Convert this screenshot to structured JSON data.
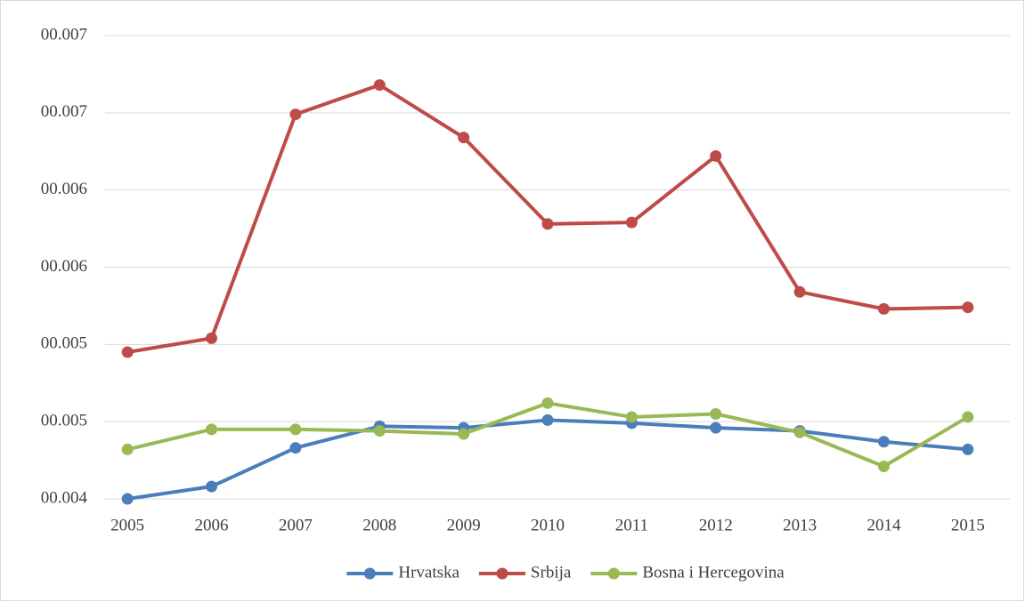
{
  "chart_data": {
    "type": "line",
    "categories": [
      "2005",
      "2006",
      "2007",
      "2008",
      "2009",
      "2010",
      "2011",
      "2012",
      "2013",
      "2014",
      "2015"
    ],
    "series": [
      {
        "name": "Hrvatska",
        "color": "#4a7ebb",
        "values": [
          0.004,
          0.00408,
          0.00433,
          0.00447,
          0.00446,
          0.00451,
          0.00449,
          0.00446,
          0.00444,
          0.00437,
          0.00432
        ]
      },
      {
        "name": "Srbija",
        "color": "#be4b48",
        "values": [
          0.00495,
          0.00504,
          0.00649,
          0.00668,
          0.00634,
          0.00578,
          0.00579,
          0.00622,
          0.00534,
          0.00523,
          0.00524
        ]
      },
      {
        "name": "Bosna i Hercegovina",
        "color": "#98b954",
        "values": [
          0.00432,
          0.00445,
          0.00445,
          0.00444,
          0.00442,
          0.00462,
          0.00453,
          0.00455,
          0.00443,
          0.00421,
          0.00453
        ]
      }
    ],
    "ylim": [
      0.004,
      0.007
    ],
    "yticks": [
      {
        "value": 0.004,
        "label": "00.004"
      },
      {
        "value": 0.0045,
        "label": "00.005"
      },
      {
        "value": 0.005,
        "label": "00.005"
      },
      {
        "value": 0.0055,
        "label": "00.006"
      },
      {
        "value": 0.006,
        "label": "00.006"
      },
      {
        "value": 0.0065,
        "label": "00.007"
      },
      {
        "value": 0.007,
        "label": "00.007"
      }
    ],
    "grid": true,
    "legend": "bottom"
  }
}
